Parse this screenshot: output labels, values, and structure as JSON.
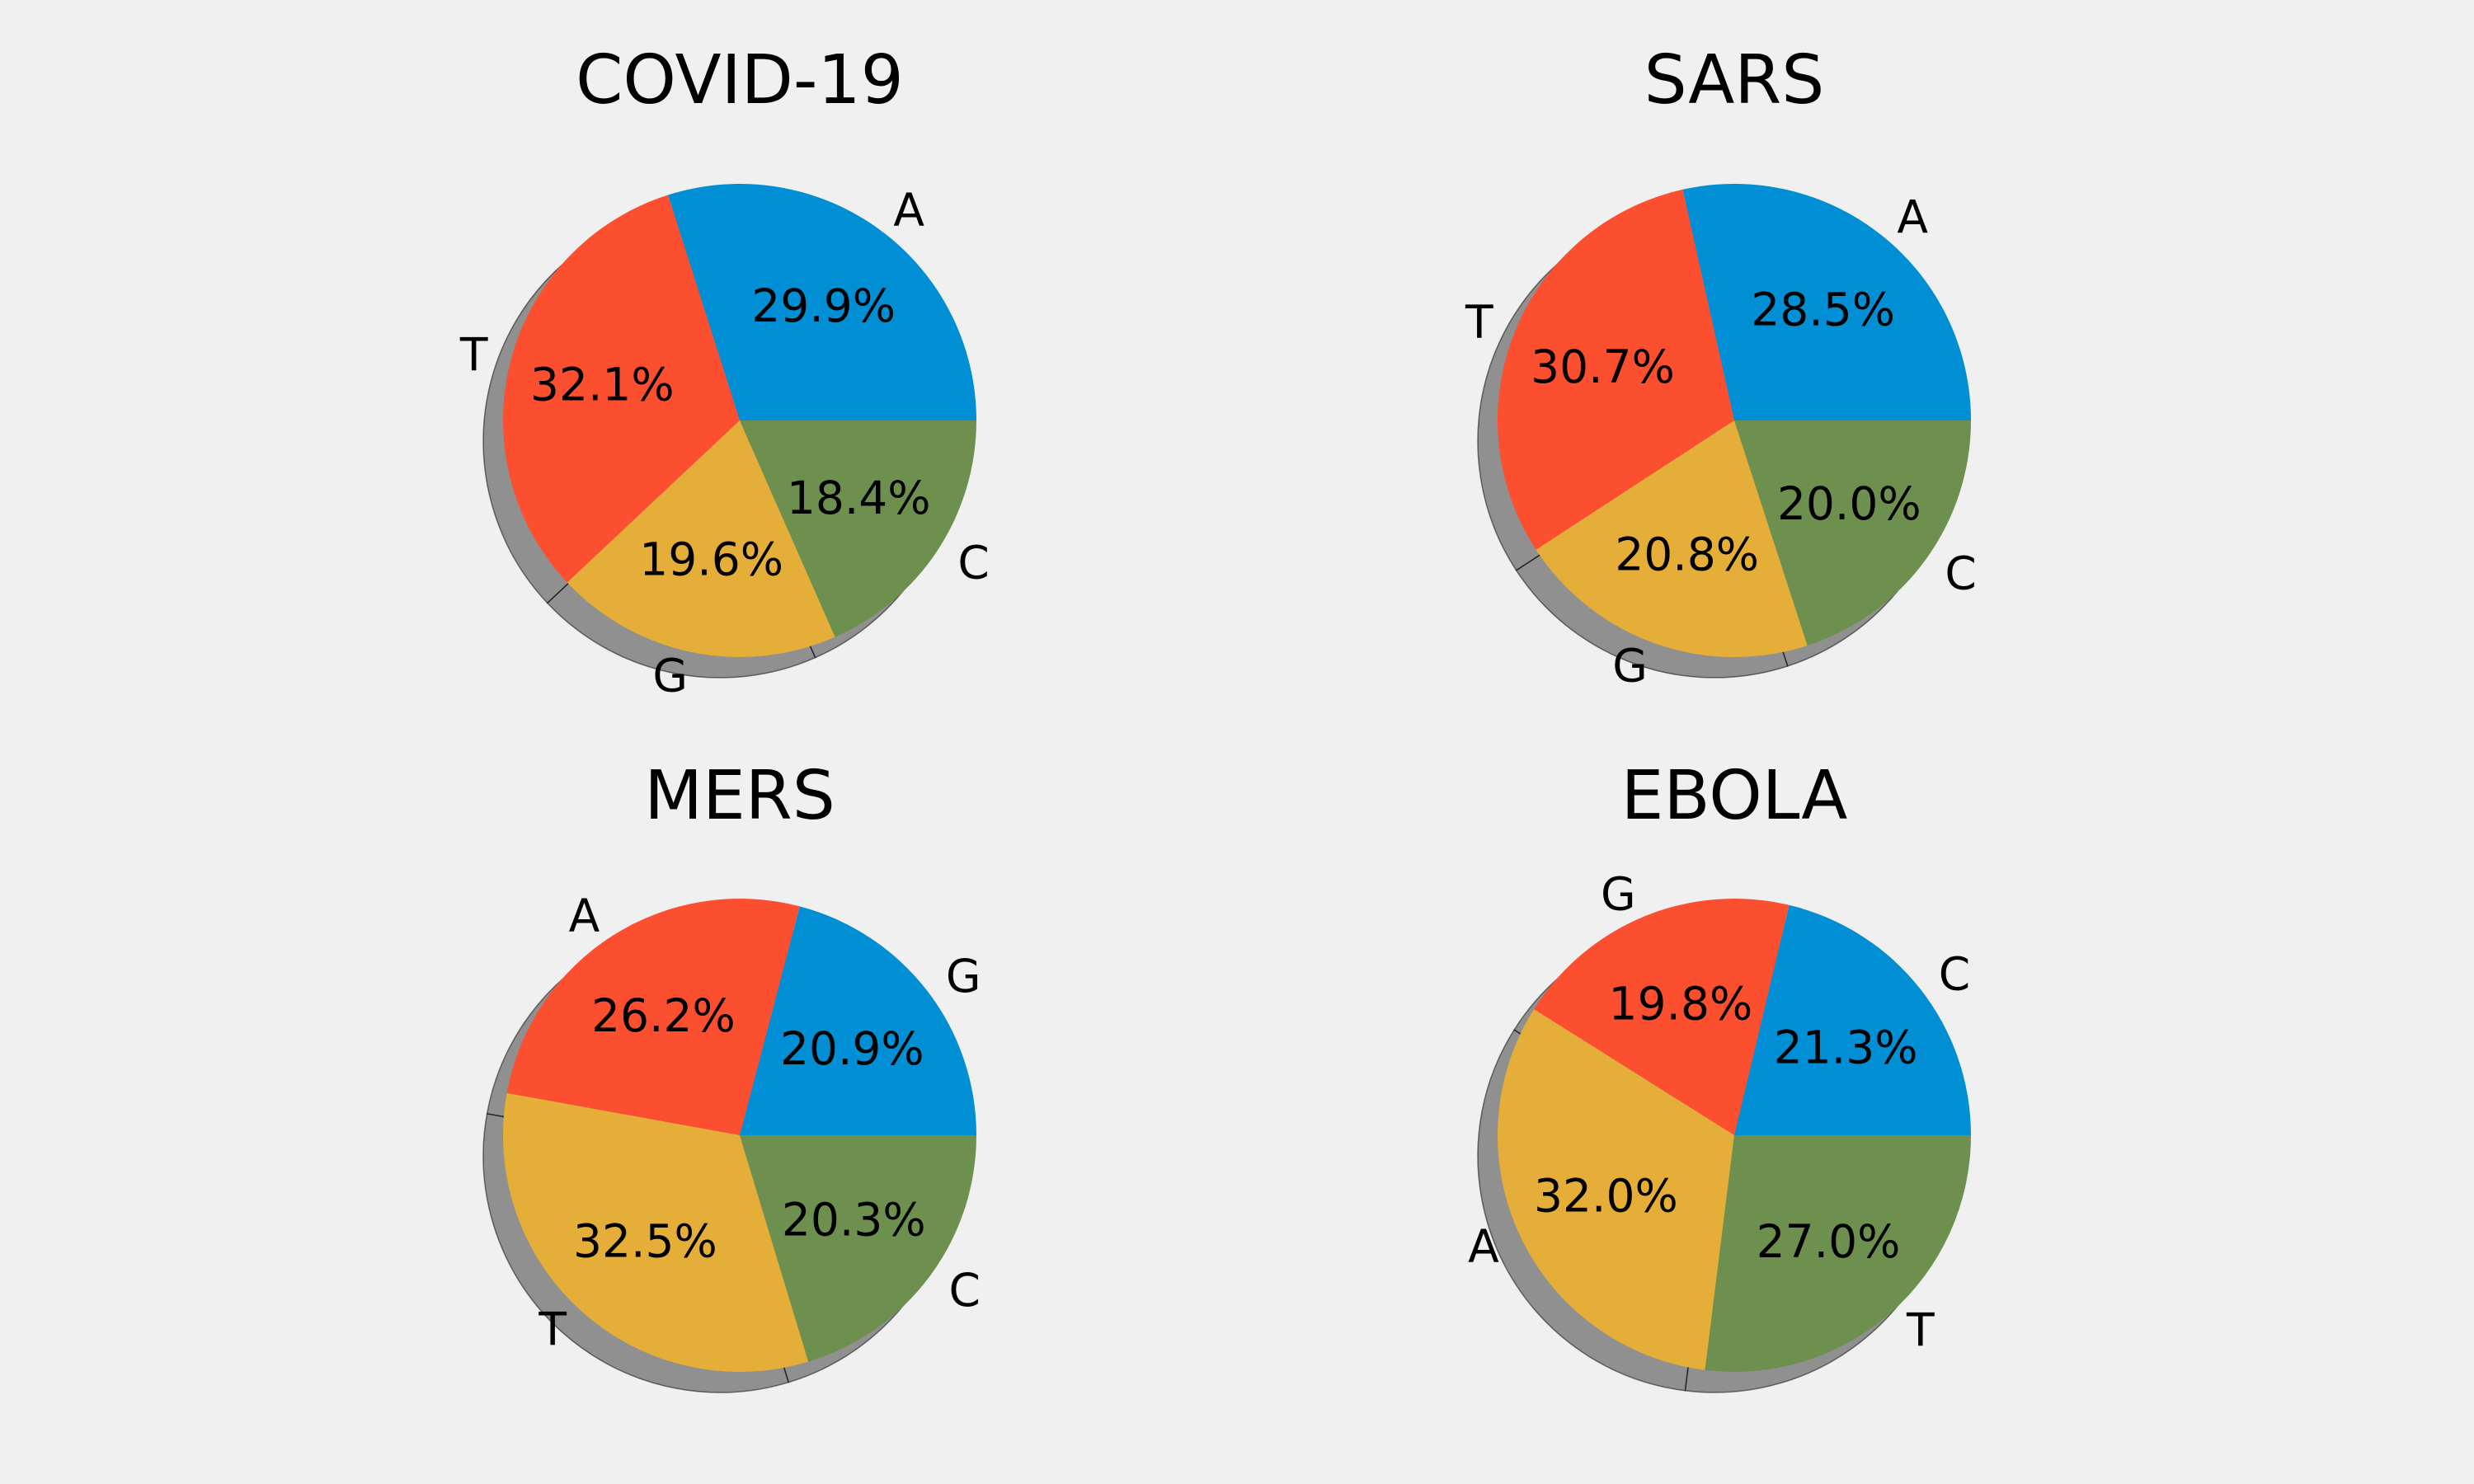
{
  "figure": {
    "background": "#f0f0f0"
  },
  "chart_data": [
    {
      "type": "pie",
      "title": "COVID-19",
      "shadow": true,
      "start_angle_deg": 0,
      "direction": "counterclockwise",
      "labels": [
        "A",
        "T",
        "G",
        "C"
      ],
      "values": [
        29.9,
        32.1,
        19.6,
        18.4
      ],
      "percent_labels": [
        "29.9%",
        "32.1%",
        "19.6%",
        "18.4%"
      ],
      "colors": [
        "#008fd5",
        "#fc4f30",
        "#e5ae38",
        "#6d904f"
      ]
    },
    {
      "type": "pie",
      "title": "SARS",
      "shadow": true,
      "start_angle_deg": 0,
      "direction": "counterclockwise",
      "labels": [
        "A",
        "T",
        "G",
        "C"
      ],
      "values": [
        28.5,
        30.7,
        20.8,
        20.0
      ],
      "percent_labels": [
        "28.5%",
        "30.7%",
        "20.8%",
        "20.0%"
      ],
      "colors": [
        "#008fd5",
        "#fc4f30",
        "#e5ae38",
        "#6d904f"
      ]
    },
    {
      "type": "pie",
      "title": "MERS",
      "shadow": true,
      "start_angle_deg": 0,
      "direction": "counterclockwise",
      "labels": [
        "G",
        "A",
        "T",
        "C"
      ],
      "values": [
        20.9,
        26.2,
        32.5,
        20.3
      ],
      "percent_labels": [
        "20.9%",
        "26.2%",
        "32.5%",
        "20.3%"
      ],
      "colors": [
        "#008fd5",
        "#fc4f30",
        "#e5ae38",
        "#6d904f"
      ]
    },
    {
      "type": "pie",
      "title": "EBOLA",
      "shadow": true,
      "start_angle_deg": 0,
      "direction": "counterclockwise",
      "labels": [
        "C",
        "G",
        "A",
        "T"
      ],
      "values": [
        21.3,
        19.8,
        32.0,
        27.0
      ],
      "percent_labels": [
        "21.3%",
        "19.8%",
        "32.0%",
        "27.0%"
      ],
      "colors": [
        "#008fd5",
        "#fc4f30",
        "#e5ae38",
        "#6d904f"
      ]
    }
  ]
}
